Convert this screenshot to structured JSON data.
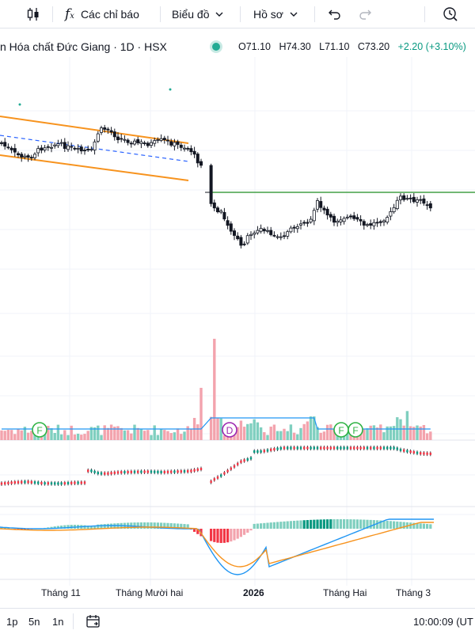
{
  "toolbar": {
    "indicators_label": "Các chỉ báo",
    "chart_type_label": "Biểu đồ",
    "profile_label": "Hồ sơ"
  },
  "legend": {
    "title": "n Hóa chất Đức Giang · 1D · HSX",
    "open": "O71.10",
    "high": "H74.30",
    "low": "L71.10",
    "close": "C73.20",
    "change": "+2.20 (+3.10%)"
  },
  "markers": [
    "F",
    "D",
    "F",
    "F"
  ],
  "time_axis": [
    "Tháng 11",
    "Tháng Mười hai",
    "2026",
    "Tháng Hai",
    "Tháng 3"
  ],
  "bottom_bar": {
    "ranges": [
      "1p",
      "5n",
      "1n"
    ],
    "clock": "10:00:09 (UT"
  },
  "colors": {
    "up": "#089981",
    "down": "#f23645",
    "up_volume": "#7fcfbf",
    "down_volume": "#f3a3ad",
    "channel": "#f7931e",
    "resistance": "#43a047",
    "macd": "#2196f3",
    "signal": "#f7931e"
  }
}
